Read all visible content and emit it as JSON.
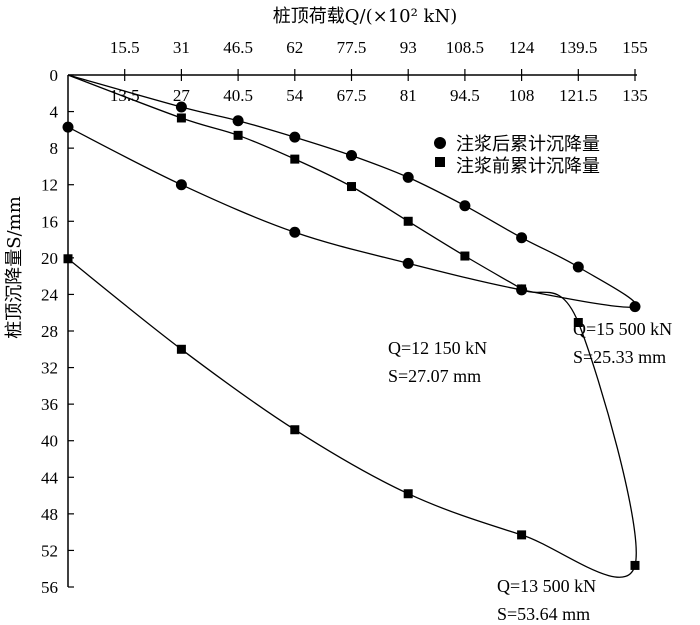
{
  "chart_data": {
    "type": "line",
    "title": "",
    "top_axis": {
      "label": "桩顶荷载Q/(×10² kN)",
      "ticks_upper": [
        "15.5",
        "31",
        "46.5",
        "62",
        "77.5",
        "93",
        "108.5",
        "124",
        "139.5",
        "155"
      ],
      "ticks_lower": [
        "13.5",
        "27",
        "40.5",
        "54",
        "67.5",
        "81",
        "94.5",
        "108",
        "121.5",
        "135"
      ],
      "range_upper": [
        0,
        155
      ],
      "range_lower": [
        0,
        135
      ]
    },
    "y_axis": {
      "label": "桩顶沉降量S/mm",
      "ticks": [
        "0",
        "4",
        "8",
        "12",
        "16",
        "20",
        "24",
        "28",
        "32",
        "36",
        "40",
        "44",
        "48",
        "52",
        "56"
      ],
      "range": [
        0,
        56
      ],
      "reversed": true
    },
    "legend": [
      {
        "label": "注浆后累计沉降量",
        "marker": "circle"
      },
      {
        "label": "注浆前累计沉降量",
        "marker": "square"
      }
    ],
    "series": [
      {
        "name": "注浆后累计沉降量",
        "marker": "circle",
        "scale": "upper",
        "x": [
          0,
          31,
          46.5,
          62,
          77.5,
          93,
          108.5,
          124,
          139.5,
          155,
          124,
          93,
          62,
          31,
          0
        ],
        "y": [
          0,
          3.5,
          5.0,
          6.8,
          8.8,
          11.2,
          14.3,
          17.8,
          21.0,
          25.33,
          23.5,
          20.6,
          17.2,
          12.0,
          5.7
        ]
      },
      {
        "name": "注浆前累计沉降量",
        "marker": "square",
        "scale": "lower",
        "x": [
          0,
          27,
          40.5,
          54,
          67.5,
          81,
          94.5,
          108,
          121.5,
          135,
          108,
          81,
          54,
          27,
          0
        ],
        "y": [
          0,
          4.7,
          6.6,
          9.2,
          12.2,
          16.0,
          19.8,
          23.4,
          27.07,
          53.64,
          50.3,
          45.8,
          38.8,
          30.0,
          20.1
        ]
      }
    ],
    "annotations": [
      {
        "line1": "Q=12 150 kN",
        "line2": "S=27.07 mm"
      },
      {
        "line1": "Q=15 500 kN",
        "line2": "S=25.33 mm"
      },
      {
        "line1": "Q=13 500 kN",
        "line2": "S=53.64 mm"
      }
    ]
  }
}
